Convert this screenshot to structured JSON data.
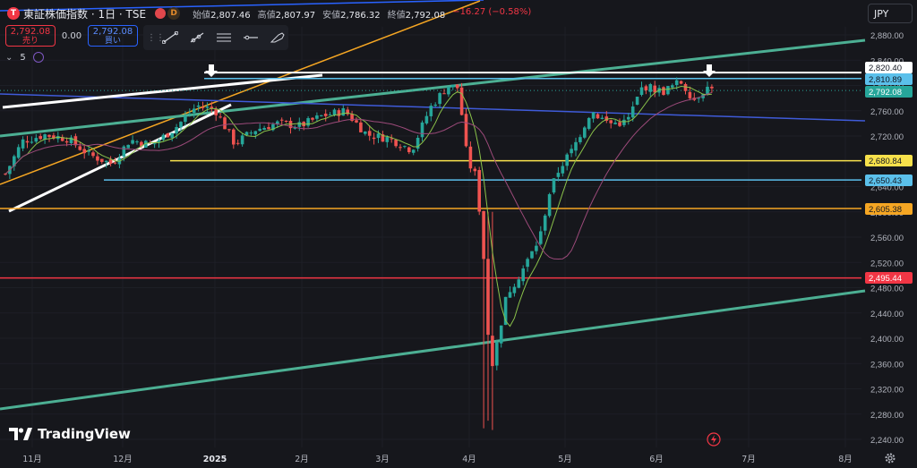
{
  "header": {
    "symbol_logo": "T",
    "symbol": "東証株価指数 · 1日 · TSE",
    "market_status_color": "#e0474c",
    "delay_badge": "D",
    "open_label": "始値",
    "open": "2,807.46",
    "high_label": "高値",
    "high": "2,807.97",
    "low_label": "安値",
    "low": "2,786.32",
    "close_label": "終値",
    "close": "2,792.08",
    "change": "−16.27 (−0.58%)"
  },
  "trade": {
    "sell_price": "2,792.08",
    "sell_label": "売り",
    "spread": "0.00",
    "buy_price": "2,792.08",
    "buy_label": "買い"
  },
  "drawing_toolbar": {
    "tools": [
      "trend-line-icon",
      "ray-icon",
      "parallel-channel-icon",
      "horizontal-line-icon",
      "brush-icon"
    ]
  },
  "indicators": {
    "collapse_chevron": "⌄",
    "count": "5"
  },
  "currency": "JPY",
  "branding": {
    "logo_text": "TradingView"
  },
  "colors": {
    "up": "#26a69a",
    "down": "#ef5350",
    "background": "#16171c"
  },
  "price_axis": {
    "ticks": [
      "2,880.00",
      "2,840.00",
      "2,800.00",
      "2,760.00",
      "2,720.00",
      "2,680.00",
      "2,640.00",
      "2,600.00",
      "2,560.00",
      "2,520.00",
      "2,480.00",
      "2,440.00",
      "2,400.00",
      "2,360.00",
      "2,320.00",
      "2,280.00",
      "2,240.00"
    ],
    "tags": [
      {
        "label": "2,820.40",
        "color": "#ffffff",
        "text_color": "#131722"
      },
      {
        "label": "2,810.89",
        "color": "#5bc0eb",
        "text_color": "#131722"
      },
      {
        "label": "2,792.08",
        "color": "#26a69a",
        "text_color": "#ffffff"
      },
      {
        "label": "2,680.84",
        "color": "#f7e14b",
        "text_color": "#131722"
      },
      {
        "label": "2,650.43",
        "color": "#5bc0eb",
        "text_color": "#131722"
      },
      {
        "label": "2,605.38",
        "color": "#f5a623",
        "text_color": "#131722"
      },
      {
        "label": "2,495.44",
        "color": "#f23645",
        "text_color": "#ffffff"
      }
    ]
  },
  "time_axis": [
    "11月",
    "12月",
    "2025",
    "2月",
    "3月",
    "4月",
    "5月",
    "6月",
    "7月",
    "8月"
  ],
  "chart_data": {
    "type": "candlestick",
    "x_ticks": [
      "11月",
      "12月",
      "2025",
      "2月",
      "3月",
      "4月",
      "5月",
      "6月",
      "7月",
      "8月"
    ],
    "y_ticks": [
      2880,
      2840,
      2800,
      2760,
      2720,
      2680,
      2640,
      2600,
      2560,
      2520,
      2480,
      2440,
      2400,
      2360,
      2320,
      2280,
      2240
    ],
    "y_range": [
      2225,
      2900
    ],
    "horizontal_levels": [
      {
        "value": 2820.4,
        "color": "#ffffff"
      },
      {
        "value": 2810.89,
        "color": "#5bc0eb"
      },
      {
        "value": 2680.84,
        "color": "#f7e14b"
      },
      {
        "value": 2650.43,
        "color": "#5bc0eb"
      },
      {
        "value": 2605.38,
        "color": "#f5a623"
      },
      {
        "value": 2495.44,
        "color": "#f23645"
      }
    ],
    "last_price": 2792.08
  }
}
